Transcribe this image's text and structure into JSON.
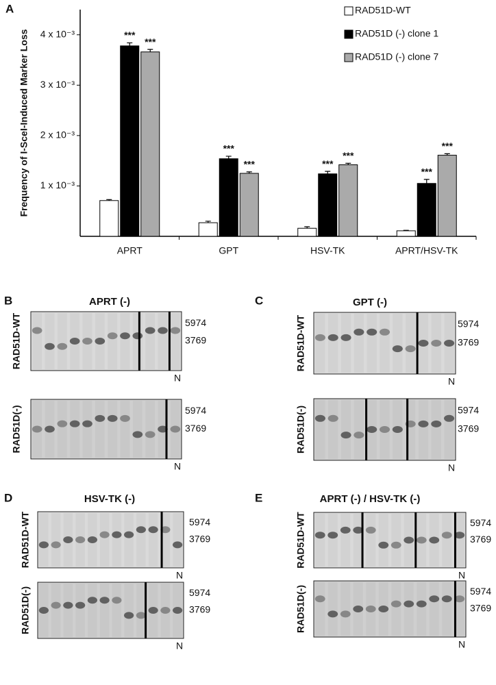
{
  "chart_data": {
    "type": "bar",
    "label": "A",
    "ylabel": "Frequency of I-SceI-Induced Marker Loss",
    "categories": [
      "APRT",
      "GPT",
      "HSV-TK",
      "APRT/HSV-TK"
    ],
    "series": [
      {
        "name": "RAD51D-WT",
        "color": "#ffffff",
        "values": [
          0.00071,
          0.00027,
          0.00016,
          0.00011
        ],
        "errors": [
          2e-05,
          3e-05,
          3e-05,
          1e-05
        ]
      },
      {
        "name": "RAD51D (-) clone 1",
        "color": "#000000",
        "values": [
          0.00378,
          0.00154,
          0.00124,
          0.00105
        ],
        "errors": [
          6e-05,
          5e-05,
          5e-05,
          8e-05
        ],
        "significance": [
          "***",
          "***",
          "***",
          "***"
        ]
      },
      {
        "name": "RAD51D (-) clone 7",
        "color": "#aaaaaa",
        "values": [
          0.00366,
          0.00125,
          0.00142,
          0.00161
        ],
        "errors": [
          5e-05,
          3e-05,
          3e-05,
          3e-05
        ],
        "significance": [
          "***",
          "***",
          "***",
          "***"
        ]
      }
    ],
    "ylim": [
      0,
      0.0045
    ],
    "yticks": [
      {
        "value": 0.001,
        "label": "1 x 10⁻³"
      },
      {
        "value": 0.002,
        "label": "2 x 10⁻³"
      },
      {
        "value": 0.003,
        "label": "3 x 10⁻³"
      },
      {
        "value": 0.004,
        "label": "4 x 10⁻³"
      }
    ]
  },
  "panels": [
    {
      "letter": "B",
      "title": "APRT (-)",
      "rows": [
        {
          "label": "RAD51D-WT",
          "markers": [
            "5974",
            "3769"
          ],
          "lane": "N"
        },
        {
          "label": "RAD51D(-)",
          "markers": [
            "5974",
            "3769"
          ],
          "lane": "N"
        }
      ]
    },
    {
      "letter": "C",
      "title": "GPT (-)",
      "rows": [
        {
          "label": "RAD51D-WT",
          "markers": [
            "5974",
            "3769"
          ],
          "lane": "N"
        },
        {
          "label": "RAD51D(-)",
          "markers": [
            "5974",
            "3769"
          ],
          "lane": "N"
        }
      ]
    },
    {
      "letter": "D",
      "title": "HSV-TK (-)",
      "rows": [
        {
          "label": "RAD51D-WT",
          "markers": [
            "5974",
            "3769"
          ],
          "lane": "N"
        },
        {
          "label": "RAD51D(-)",
          "markers": [
            "5974",
            "3769"
          ],
          "lane": "N"
        }
      ]
    },
    {
      "letter": "E",
      "title": "APRT (-) / HSV-TK (-)",
      "rows": [
        {
          "label": "RAD51D-WT",
          "markers": [
            "5974",
            "3769"
          ],
          "lane": "N"
        },
        {
          "label": "RAD51D(-)",
          "markers": [
            "5974",
            "3769"
          ],
          "lane": "N"
        }
      ]
    }
  ]
}
